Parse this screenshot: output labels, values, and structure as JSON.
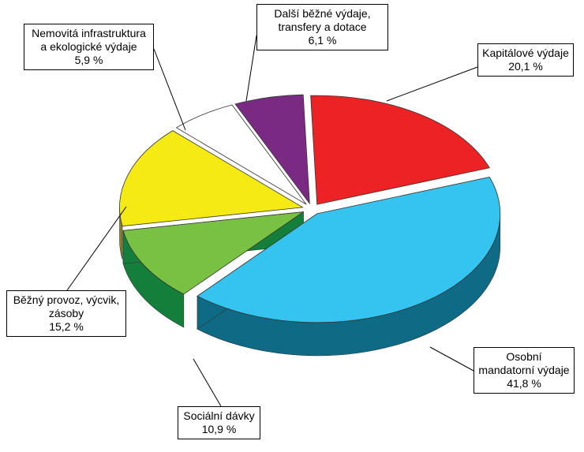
{
  "chart_data": {
    "type": "pie",
    "categories": [
      "Kapitálové výdaje",
      "Osobní mandatorní výdaje",
      "Sociální dávky",
      "Běžný provoz, výcvik, zásoby",
      "Nemovitá infrastruktura a ekologické výdaje",
      "Další běžné výdaje, transfery a dotace"
    ],
    "values": [
      20.1,
      41.8,
      10.9,
      15.2,
      5.9,
      6.1
    ],
    "value_labels": [
      "20,1 %",
      "41,8 %",
      "10,9 %",
      "15,2 %",
      "5,9 %",
      "6,1 %"
    ],
    "colors": [
      "#ed2224",
      "#35c4f0",
      "#79c143",
      "#f5ea14",
      "#ffffff",
      "#7b2a84"
    ],
    "side_colors": [
      "#8e1416",
      "#0f6a86",
      "#137f3a",
      "#8a8320",
      "#9a9a9a",
      "#4a1750"
    ]
  }
}
